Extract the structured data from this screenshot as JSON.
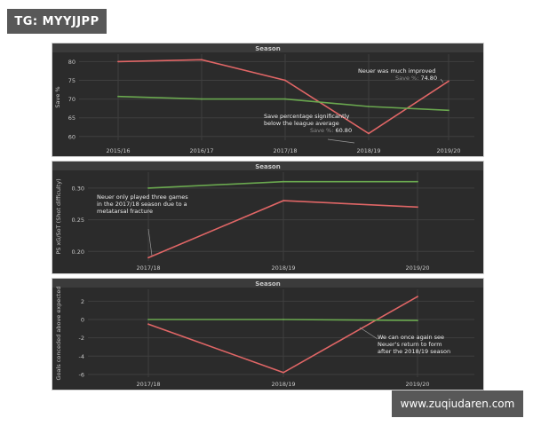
{
  "watermark_top": "TG: MYYJJPP",
  "watermark_bottom": "www.zuqiudaren.com",
  "colors": {
    "background": "#2b2b2b",
    "header_strip": "#3b3b3b",
    "grid": "#3f3f3f",
    "axis_text": "#c8c8c8",
    "annotation_text": "#ececec",
    "annotation_value": "#8a8a8a",
    "red_series": "#e06666",
    "green_series": "#6aa84f"
  },
  "chart_data": [
    {
      "type": "line",
      "title": "Season",
      "ylabel": "Save %",
      "x": [
        "2015/16",
        "2016/17",
        "2017/18",
        "2018/19",
        "2019/20"
      ],
      "ylim": [
        59,
        82
      ],
      "yticks": [
        "60",
        "65",
        "70",
        "75",
        "80"
      ],
      "series": [
        {
          "color": "#e06666",
          "values": [
            80.0,
            80.5,
            75.0,
            60.8,
            74.8
          ]
        },
        {
          "color": "#6aa84f",
          "values": [
            70.7,
            70.0,
            70.0,
            68.0,
            67.0
          ]
        }
      ],
      "annotations": [
        {
          "lines": [
            "Neuer was much improved"
          ],
          "value_label": "Save %:",
          "value": "74.80"
        },
        {
          "lines": [
            "Save percentage significantly",
            "below the league average"
          ],
          "value_label": "Save %:",
          "value": "60.80"
        }
      ]
    },
    {
      "type": "line",
      "title": "Season",
      "ylabel": "PS xG/SoT (Shot difficulty)",
      "x": [
        "2017/18",
        "2018/19",
        "2019/20"
      ],
      "ylim": [
        0.185,
        0.325
      ],
      "yticks": [
        "0.20",
        "0.25",
        "0.30"
      ],
      "series": [
        {
          "color": "#e06666",
          "values": [
            0.19,
            0.28,
            0.27
          ]
        },
        {
          "color": "#6aa84f",
          "values": [
            0.3,
            0.31,
            0.31
          ]
        }
      ],
      "annotations": [
        {
          "lines": [
            "Neuer only played three games",
            "in the 2017/18 season due to a",
            "metatarsal fracture"
          ]
        }
      ]
    },
    {
      "type": "line",
      "title": "Season",
      "ylabel": "Goals conceded above expected",
      "x": [
        "2017/18",
        "2018/19",
        "2019/20"
      ],
      "ylim": [
        -6.3,
        3.3
      ],
      "yticks": [
        "2",
        "0",
        "-2",
        "-4",
        "-6"
      ],
      "series": [
        {
          "color": "#e06666",
          "values": [
            -0.5,
            -5.8,
            2.5
          ]
        },
        {
          "color": "#6aa84f",
          "values": [
            0.0,
            0.0,
            -0.1
          ]
        }
      ],
      "annotations": [
        {
          "lines": [
            "We can once again see",
            "Neuer's return to form",
            "after the 2018/19 season"
          ]
        }
      ]
    }
  ]
}
